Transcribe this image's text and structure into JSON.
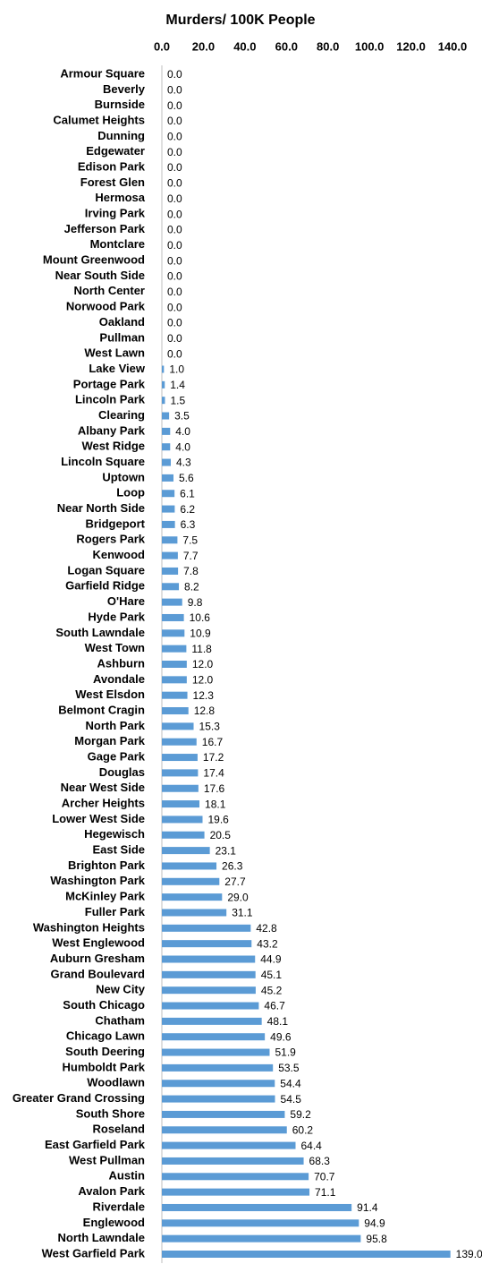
{
  "chart_data": {
    "type": "barh",
    "title": "Murders/ 100K People",
    "categories": [
      "Armour Square",
      "Beverly",
      "Burnside",
      "Calumet Heights",
      "Dunning",
      "Edgewater",
      "Edison Park",
      "Forest Glen",
      "Hermosa",
      "Irving Park",
      "Jefferson Park",
      "Montclare",
      "Mount Greenwood",
      "Near South Side",
      "North Center",
      "Norwood Park",
      "Oakland",
      "Pullman",
      "West Lawn",
      "Lake View",
      "Portage Park",
      "Lincoln Park",
      "Clearing",
      "Albany Park",
      "West Ridge",
      "Lincoln Square",
      "Uptown",
      "Loop",
      "Near North Side",
      "Bridgeport",
      "Rogers Park",
      "Kenwood",
      "Logan Square",
      "Garfield Ridge",
      "O'Hare",
      "Hyde Park",
      "South Lawndale",
      "West Town",
      "Ashburn",
      "Avondale",
      "West Elsdon",
      "Belmont Cragin",
      "North Park",
      "Morgan Park",
      "Gage Park",
      "Douglas",
      "Near West Side",
      "Archer Heights",
      "Lower West Side",
      "Hegewisch",
      "East Side",
      "Brighton Park",
      "Washington Park",
      "McKinley Park",
      "Fuller Park",
      "Washington Heights",
      "West Englewood",
      "Auburn Gresham",
      "Grand Boulevard",
      "New City",
      "South Chicago",
      "Chatham",
      "Chicago Lawn",
      "South Deering",
      "Humboldt Park",
      "Woodlawn",
      "Greater Grand Crossing",
      "South Shore",
      "Roseland",
      "East Garfield Park",
      "West Pullman",
      "Austin",
      "Avalon Park",
      "Riverdale",
      "Englewood",
      "North Lawndale",
      "West Garfield Park"
    ],
    "values": [
      0,
      0,
      0,
      0,
      0,
      0,
      0,
      0,
      0,
      0,
      0,
      0,
      0,
      0,
      0,
      0,
      0,
      0,
      0,
      1,
      1.4,
      1.5,
      3.5,
      4,
      4,
      4.3,
      5.6,
      6.1,
      6.2,
      6.3,
      7.5,
      7.7,
      7.8,
      8.2,
      9.8,
      10.6,
      10.9,
      11.8,
      12,
      12,
      12.3,
      12.8,
      15.3,
      16.7,
      17.2,
      17.4,
      17.6,
      18.1,
      19.6,
      20.5,
      23.1,
      26.3,
      27.7,
      29,
      31.1,
      42.8,
      43.2,
      44.9,
      45.1,
      45.2,
      46.7,
      48.1,
      49.6,
      51.9,
      53.5,
      54.4,
      54.5,
      59.2,
      60.2,
      64.4,
      68.3,
      70.7,
      71.1,
      91.4,
      94.9,
      95.8,
      139
    ],
    "value_labels": [
      "0.0",
      "0.0",
      "0.0",
      "0.0",
      "0.0",
      "0.0",
      "0.0",
      "0.0",
      "0.0",
      "0.0",
      "0.0",
      "0.0",
      "0.0",
      "0.0",
      "0.0",
      "0.0",
      "0.0",
      "0.0",
      "0.0",
      "1.0",
      "1.4",
      "1.5",
      "3.5",
      "4.0",
      "4.0",
      "4.3",
      "5.6",
      "6.1",
      "6.2",
      "6.3",
      "7.5",
      "7.7",
      "7.8",
      "8.2",
      "9.8",
      "10.6",
      "10.9",
      "11.8",
      "12.0",
      "12.0",
      "12.3",
      "12.8",
      "15.3",
      "16.7",
      "17.2",
      "17.4",
      "17.6",
      "18.1",
      "19.6",
      "20.5",
      "23.1",
      "26.3",
      "27.7",
      "29.0",
      "31.1",
      "42.8",
      "43.2",
      "44.9",
      "45.1",
      "45.2",
      "46.7",
      "48.1",
      "49.6",
      "51.9",
      "53.5",
      "54.4",
      "54.5",
      "59.2",
      "60.2",
      "64.4",
      "68.3",
      "70.7",
      "71.1",
      "91.4",
      "94.9",
      "95.8",
      "139.0"
    ],
    "color": "#5b9bd5",
    "xlim": [
      0,
      140
    ],
    "xticks": [
      {
        "value": 0,
        "label": "0.0"
      },
      {
        "value": 20,
        "label": "20.0"
      },
      {
        "value": 40,
        "label": "40.0"
      },
      {
        "value": 60,
        "label": "60.0"
      },
      {
        "value": 80,
        "label": "80.0"
      },
      {
        "value": 100,
        "label": "100.0"
      },
      {
        "value": 120,
        "label": "120.0"
      },
      {
        "value": 140,
        "label": "140.0"
      }
    ],
    "grid": false
  }
}
